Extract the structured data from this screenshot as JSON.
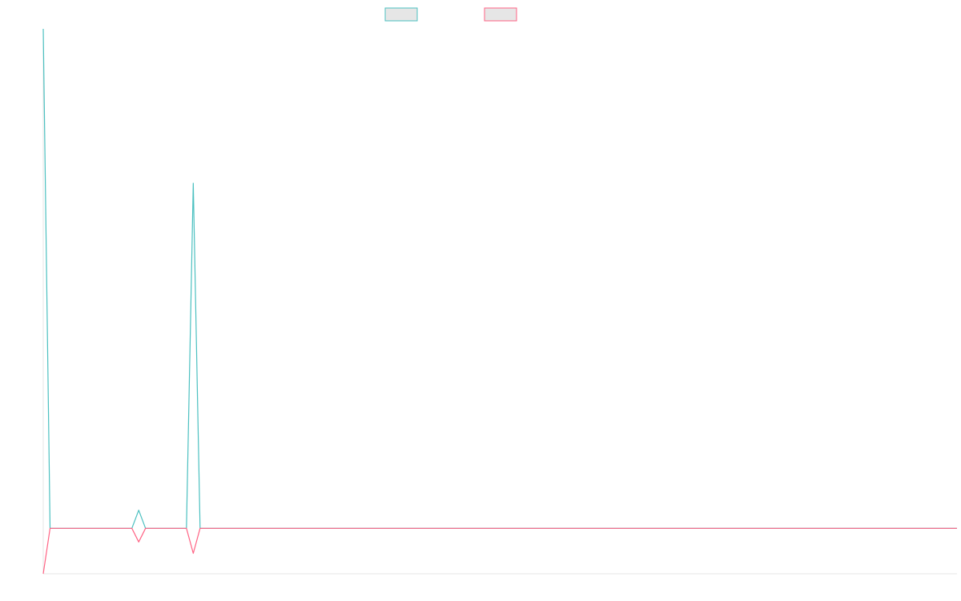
{
  "chart_data": {
    "type": "line",
    "title": "",
    "xlabel": "",
    "ylabel": "",
    "x_count": 135,
    "ylim": [
      -1,
      11
    ],
    "grid": false,
    "legend_position": "top-center",
    "series": [
      {
        "name": "",
        "color": "#4bc0c0",
        "values_sparse": [
          [
            0,
            11
          ],
          [
            1,
            0
          ],
          [
            14,
            0.4
          ],
          [
            22,
            7.6
          ],
          [
            23,
            0
          ]
        ],
        "default": 0
      },
      {
        "name": "",
        "color": "#ff6384",
        "values_sparse": [
          [
            0,
            -1
          ],
          [
            1,
            0
          ],
          [
            14,
            -0.3
          ],
          [
            22,
            -0.55
          ],
          [
            23,
            0
          ]
        ],
        "default": 0
      }
    ]
  }
}
